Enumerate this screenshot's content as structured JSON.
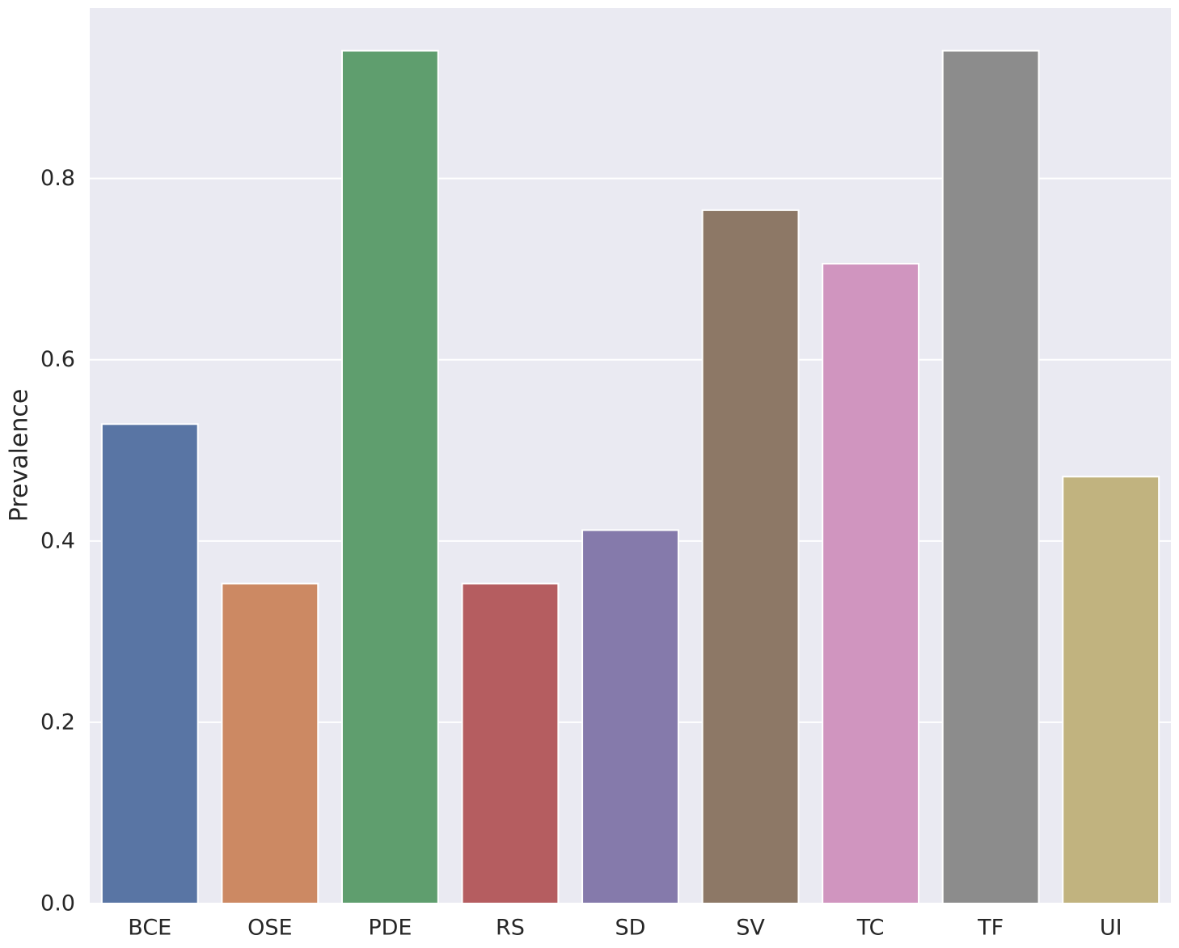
{
  "chart_data": {
    "type": "bar",
    "title": "",
    "xlabel": "",
    "ylabel": "Prevalence",
    "categories": [
      "BCE",
      "OSE",
      "PDE",
      "RS",
      "SD",
      "SV",
      "TC",
      "TF",
      "UI"
    ],
    "values": [
      0.529,
      0.353,
      0.941,
      0.353,
      0.412,
      0.765,
      0.706,
      0.941,
      0.471
    ],
    "colors": [
      "#5975a4",
      "#cc8963",
      "#5f9e6e",
      "#b55d60",
      "#857aab",
      "#8d7866",
      "#d095bf",
      "#8c8c8c",
      "#c1b37f"
    ],
    "ylim": [
      0,
      0.988
    ],
    "yticks": [
      0.0,
      0.2,
      0.4,
      0.6,
      0.8
    ],
    "ytick_labels": [
      "0.0",
      "0.2",
      "0.4",
      "0.6",
      "0.8"
    ],
    "grid": true,
    "background_color": "#eaeaf2",
    "grid_color": "#ffffff"
  }
}
